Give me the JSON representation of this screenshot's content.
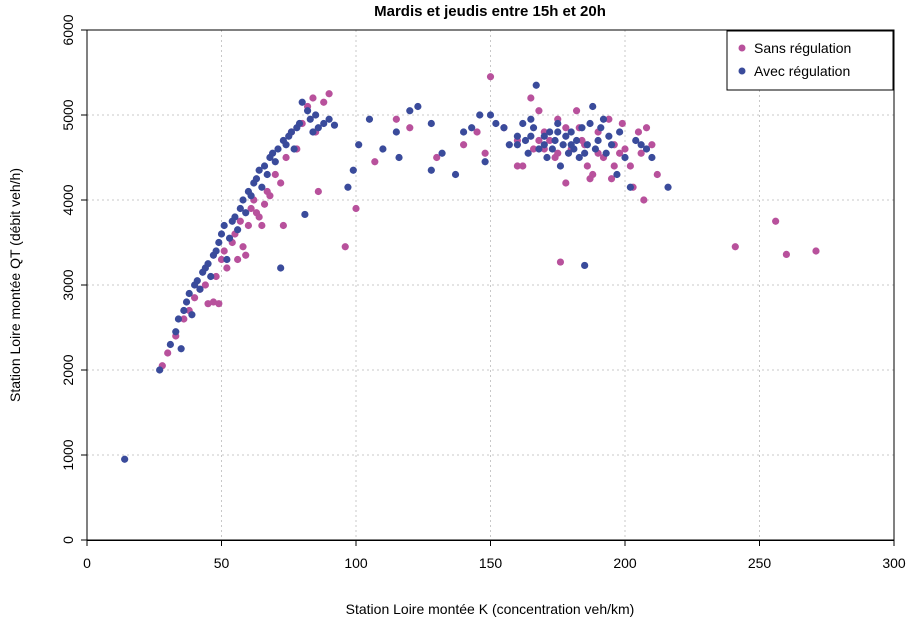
{
  "chart_data": {
    "type": "scatter",
    "title": "Mardis et jeudis entre 15h et 20h",
    "xlabel": "Station Loire montée K (concentration veh/km)",
    "ylabel": "Station Loire montée QT (débit veh/h)",
    "xlim": [
      0,
      300
    ],
    "ylim": [
      0,
      6000
    ],
    "x_ticks": [
      "0",
      "50",
      "100",
      "150",
      "200",
      "250",
      "300"
    ],
    "y_ticks": [
      "0",
      "1000",
      "2000",
      "3000",
      "4000",
      "5000",
      "6000"
    ],
    "grid": true,
    "legend_position": "top-right",
    "series": [
      {
        "name": "Sans régulation",
        "color": "#b8519c",
        "points": [
          [
            28,
            2050
          ],
          [
            30,
            2200
          ],
          [
            33,
            2400
          ],
          [
            36,
            2600
          ],
          [
            38,
            2700
          ],
          [
            40,
            2850
          ],
          [
            42,
            2950
          ],
          [
            44,
            3000
          ],
          [
            45,
            2780
          ],
          [
            47,
            2800
          ],
          [
            48,
            3100
          ],
          [
            49,
            2780
          ],
          [
            50,
            3300
          ],
          [
            51,
            3400
          ],
          [
            52,
            3200
          ],
          [
            54,
            3500
          ],
          [
            55,
            3600
          ],
          [
            56,
            3300
          ],
          [
            57,
            3750
          ],
          [
            58,
            3450
          ],
          [
            59,
            3350
          ],
          [
            60,
            3700
          ],
          [
            61,
            3900
          ],
          [
            62,
            4000
          ],
          [
            63,
            3850
          ],
          [
            64,
            3800
          ],
          [
            65,
            3700
          ],
          [
            66,
            3950
          ],
          [
            67,
            4100
          ],
          [
            68,
            4050
          ],
          [
            70,
            4300
          ],
          [
            72,
            4200
          ],
          [
            73,
            3700
          ],
          [
            74,
            4500
          ],
          [
            76,
            4800
          ],
          [
            78,
            4600
          ],
          [
            80,
            4900
          ],
          [
            82,
            5100
          ],
          [
            84,
            5200
          ],
          [
            85,
            4800
          ],
          [
            86,
            4100
          ],
          [
            88,
            5150
          ],
          [
            90,
            5250
          ],
          [
            96,
            3450
          ],
          [
            100,
            3900
          ],
          [
            107,
            4450
          ],
          [
            115,
            4950
          ],
          [
            120,
            4850
          ],
          [
            130,
            4500
          ],
          [
            140,
            4650
          ],
          [
            145,
            4800
          ],
          [
            148,
            4550
          ],
          [
            150,
            5450
          ],
          [
            155,
            4850
          ],
          [
            160,
            4700
          ],
          [
            162,
            4400
          ],
          [
            165,
            5200
          ],
          [
            166,
            4600
          ],
          [
            168,
            5050
          ],
          [
            170,
            4800
          ],
          [
            172,
            4700
          ],
          [
            174,
            4500
          ],
          [
            175,
            4950
          ],
          [
            176,
            3270
          ],
          [
            178,
            4200
          ],
          [
            180,
            4600
          ],
          [
            182,
            5050
          ],
          [
            183,
            4850
          ],
          [
            185,
            4650
          ],
          [
            186,
            4400
          ],
          [
            188,
            4300
          ],
          [
            190,
            4550
          ],
          [
            192,
            4500
          ],
          [
            194,
            4950
          ],
          [
            195,
            4250
          ],
          [
            196,
            4650
          ],
          [
            198,
            4550
          ],
          [
            200,
            4600
          ],
          [
            202,
            4400
          ],
          [
            203,
            4150
          ],
          [
            205,
            4800
          ],
          [
            206,
            4550
          ],
          [
            207,
            4000
          ],
          [
            208,
            4850
          ],
          [
            210,
            4650
          ],
          [
            212,
            4300
          ],
          [
            241,
            3450
          ],
          [
            256,
            3750
          ],
          [
            260,
            3360
          ],
          [
            271,
            3400
          ],
          [
            160,
            4400
          ],
          [
            170,
            4600
          ],
          [
            178,
            4850
          ],
          [
            184,
            4700
          ],
          [
            190,
            4800
          ],
          [
            196,
            4400
          ],
          [
            199,
            4900
          ],
          [
            187,
            4250
          ],
          [
            175,
            4550
          ],
          [
            168,
            4700
          ]
        ]
      },
      {
        "name": "Avec régulation",
        "color": "#3a4b9b",
        "points": [
          [
            14,
            950
          ],
          [
            27,
            2000
          ],
          [
            31,
            2300
          ],
          [
            33,
            2450
          ],
          [
            34,
            2600
          ],
          [
            35,
            2250
          ],
          [
            36,
            2700
          ],
          [
            37,
            2800
          ],
          [
            38,
            2900
          ],
          [
            39,
            2650
          ],
          [
            40,
            3000
          ],
          [
            41,
            3050
          ],
          [
            42,
            2950
          ],
          [
            43,
            3150
          ],
          [
            44,
            3200
          ],
          [
            45,
            3250
          ],
          [
            46,
            3100
          ],
          [
            47,
            3350
          ],
          [
            48,
            3400
          ],
          [
            49,
            3500
          ],
          [
            50,
            3600
          ],
          [
            51,
            3700
          ],
          [
            52,
            3300
          ],
          [
            53,
            3550
          ],
          [
            54,
            3750
          ],
          [
            55,
            3800
          ],
          [
            56,
            3650
          ],
          [
            57,
            3900
          ],
          [
            58,
            4000
          ],
          [
            59,
            3850
          ],
          [
            60,
            4100
          ],
          [
            61,
            4050
          ],
          [
            62,
            4200
          ],
          [
            63,
            4250
          ],
          [
            64,
            4350
          ],
          [
            65,
            4150
          ],
          [
            66,
            4400
          ],
          [
            67,
            4300
          ],
          [
            68,
            4500
          ],
          [
            69,
            4550
          ],
          [
            70,
            4450
          ],
          [
            71,
            4600
          ],
          [
            72,
            3200
          ],
          [
            73,
            4700
          ],
          [
            74,
            4650
          ],
          [
            75,
            4750
          ],
          [
            76,
            4800
          ],
          [
            77,
            4600
          ],
          [
            78,
            4850
          ],
          [
            79,
            4900
          ],
          [
            80,
            5150
          ],
          [
            81,
            3830
          ],
          [
            82,
            5050
          ],
          [
            83,
            4950
          ],
          [
            84,
            4800
          ],
          [
            85,
            5000
          ],
          [
            86,
            4850
          ],
          [
            88,
            4900
          ],
          [
            90,
            4950
          ],
          [
            92,
            4880
          ],
          [
            97,
            4150
          ],
          [
            99,
            4350
          ],
          [
            101,
            4650
          ],
          [
            105,
            4950
          ],
          [
            110,
            4600
          ],
          [
            115,
            4800
          ],
          [
            116,
            4500
          ],
          [
            120,
            5050
          ],
          [
            123,
            5100
          ],
          [
            128,
            4350
          ],
          [
            128,
            4900
          ],
          [
            132,
            4550
          ],
          [
            137,
            4300
          ],
          [
            140,
            4800
          ],
          [
            143,
            4850
          ],
          [
            146,
            5000
          ],
          [
            148,
            4450
          ],
          [
            150,
            5000
          ],
          [
            152,
            4900
          ],
          [
            155,
            4850
          ],
          [
            157,
            4650
          ],
          [
            160,
            4750
          ],
          [
            162,
            4900
          ],
          [
            163,
            4700
          ],
          [
            164,
            4550
          ],
          [
            165,
            4950
          ],
          [
            166,
            4850
          ],
          [
            167,
            5350
          ],
          [
            168,
            4600
          ],
          [
            170,
            4750
          ],
          [
            171,
            4500
          ],
          [
            172,
            4800
          ],
          [
            173,
            4600
          ],
          [
            174,
            4700
          ],
          [
            175,
            4900
          ],
          [
            176,
            4400
          ],
          [
            177,
            4650
          ],
          [
            178,
            4750
          ],
          [
            179,
            4550
          ],
          [
            180,
            4800
          ],
          [
            181,
            4600
          ],
          [
            182,
            4700
          ],
          [
            183,
            4500
          ],
          [
            184,
            4850
          ],
          [
            185,
            3230
          ],
          [
            186,
            4650
          ],
          [
            187,
            4900
          ],
          [
            188,
            5100
          ],
          [
            189,
            4600
          ],
          [
            190,
            4700
          ],
          [
            191,
            4850
          ],
          [
            192,
            4950
          ],
          [
            193,
            4550
          ],
          [
            194,
            4750
          ],
          [
            195,
            4650
          ],
          [
            197,
            4300
          ],
          [
            198,
            4800
          ],
          [
            200,
            4500
          ],
          [
            202,
            4150
          ],
          [
            204,
            4700
          ],
          [
            206,
            4650
          ],
          [
            208,
            4600
          ],
          [
            210,
            4500
          ],
          [
            216,
            4150
          ],
          [
            170,
            4650
          ],
          [
            175,
            4800
          ],
          [
            180,
            4650
          ],
          [
            185,
            4550
          ],
          [
            165,
            4750
          ],
          [
            160,
            4650
          ]
        ]
      }
    ]
  }
}
